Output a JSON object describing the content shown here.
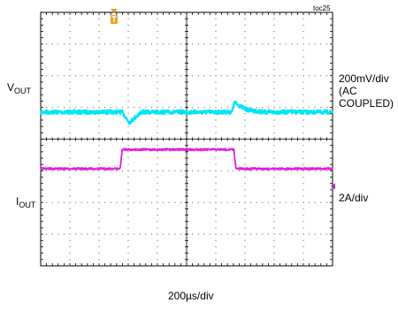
{
  "doc_tag": "toc25",
  "chart_data": {
    "type": "line",
    "title": "",
    "grid": true,
    "divisions": {
      "x": 10,
      "y": 8
    },
    "time_scale": "200µs/div",
    "series": [
      {
        "name_main": "V",
        "name_sub": "OUT",
        "color": "#00e5f5",
        "scale_lines": [
          "200mV/div",
          "(AC",
          "COUPLED)"
        ],
        "x_div": [
          0,
          2.0,
          3.95,
          4.05,
          4.4,
          5.0,
          9.5,
          9.62,
          10.2,
          11.0,
          14.5
        ],
        "y_div": [
          0,
          0,
          0,
          0,
          -0.6,
          0,
          0,
          0.55,
          0.15,
          0,
          0
        ]
      },
      {
        "name_main": "I",
        "name_sub": "OUT",
        "color": "#e020e0",
        "scale_lines": [
          "2A/div"
        ],
        "x_div": [
          0,
          3.95,
          4.05,
          9.6,
          9.7,
          14.5
        ],
        "y_div": [
          0,
          0,
          1.1,
          1.1,
          0,
          0
        ]
      }
    ]
  }
}
